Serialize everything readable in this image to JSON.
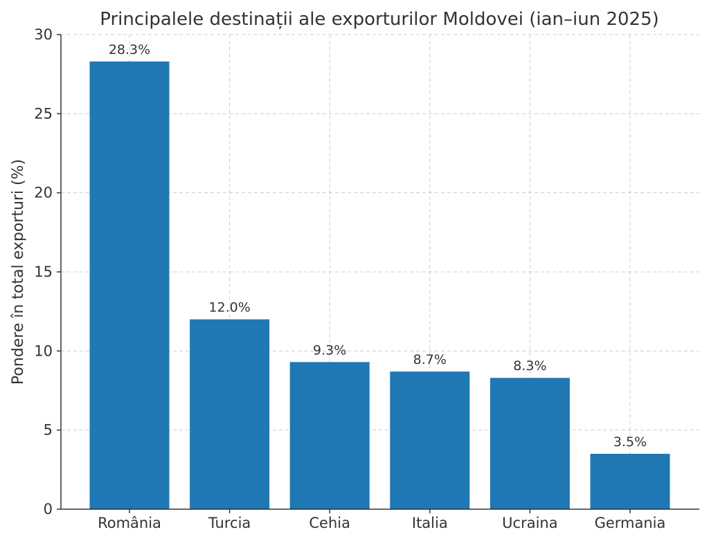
{
  "chart_data": {
    "type": "bar",
    "title": "Principalele destinații ale exporturilor Moldovei (ian–iun 2025)",
    "xlabel": "",
    "ylabel": "Pondere în total exporturi (%)",
    "categories": [
      "România",
      "Turcia",
      "Cehia",
      "Italia",
      "Ucraina",
      "Germania"
    ],
    "values": [
      28.3,
      12.0,
      9.3,
      8.7,
      8.3,
      3.5
    ],
    "data_labels": [
      "28.3%",
      "12.0%",
      "9.3%",
      "8.7%",
      "8.3%",
      "3.5%"
    ],
    "ylim": [
      0,
      30
    ],
    "yticks": [
      0,
      5,
      10,
      15,
      20,
      25,
      30
    ],
    "grid": true,
    "bar_color": "#1f77b4"
  }
}
